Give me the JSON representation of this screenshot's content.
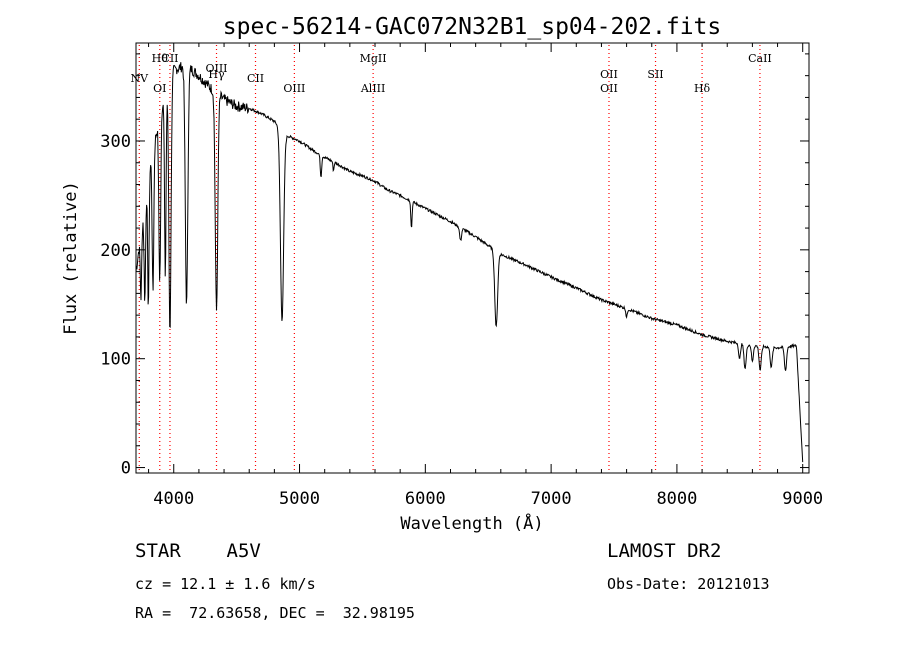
{
  "chart_data": {
    "type": "line",
    "title": "spec-56214-GAC072N32B1_sp04-202.fits",
    "xlabel": "Wavelength (Å)",
    "ylabel": "Flux (relative)",
    "xlim": [
      3700,
      9050
    ],
    "ylim": [
      -5,
      390
    ],
    "xticks": [
      4000,
      5000,
      6000,
      7000,
      8000,
      9000
    ],
    "yticks": [
      0,
      100,
      200,
      300
    ],
    "line_color": "#000000",
    "marker_color": "#ff0000",
    "continuum": [
      [
        3700,
        180
      ],
      [
        3800,
        270
      ],
      [
        3900,
        330
      ],
      [
        4000,
        365
      ],
      [
        4100,
        370
      ],
      [
        4200,
        360
      ],
      [
        4300,
        348
      ],
      [
        4400,
        338
      ],
      [
        4500,
        332
      ],
      [
        4600,
        330
      ],
      [
        4700,
        325
      ],
      [
        4800,
        318
      ],
      [
        4900,
        305
      ],
      [
        5000,
        300
      ],
      [
        5100,
        292
      ],
      [
        5200,
        285
      ],
      [
        5300,
        279
      ],
      [
        5400,
        272
      ],
      [
        5500,
        268
      ],
      [
        5600,
        263
      ],
      [
        5700,
        255
      ],
      [
        5800,
        250
      ],
      [
        5900,
        244
      ],
      [
        6000,
        238
      ],
      [
        6200,
        226
      ],
      [
        6400,
        212
      ],
      [
        6600,
        196
      ],
      [
        6800,
        186
      ],
      [
        7000,
        175
      ],
      [
        7200,
        165
      ],
      [
        7400,
        154
      ],
      [
        7600,
        146
      ],
      [
        7800,
        137
      ],
      [
        8000,
        131
      ],
      [
        8200,
        122
      ],
      [
        8400,
        116
      ],
      [
        8600,
        112
      ],
      [
        8800,
        110
      ],
      [
        8950,
        112
      ],
      [
        9000,
        5
      ]
    ],
    "absorption": [
      {
        "x": 3740,
        "depth": 60,
        "width": 8
      },
      {
        "x": 3770,
        "depth": 90,
        "width": 8
      },
      {
        "x": 3798,
        "depth": 120,
        "width": 8
      },
      {
        "x": 3835,
        "depth": 130,
        "width": 9
      },
      {
        "x": 3889,
        "depth": 150,
        "width": 10
      },
      {
        "x": 3933,
        "depth": 170,
        "width": 8
      },
      {
        "x": 3970,
        "depth": 230,
        "width": 12
      },
      {
        "x": 4102,
        "depth": 220,
        "width": 14
      },
      {
        "x": 4340,
        "depth": 200,
        "width": 14
      },
      {
        "x": 4861,
        "depth": 175,
        "width": 18
      },
      {
        "x": 5170,
        "depth": 20,
        "width": 8
      },
      {
        "x": 5270,
        "depth": 8,
        "width": 6
      },
      {
        "x": 5890,
        "depth": 25,
        "width": 7
      },
      {
        "x": 6280,
        "depth": 12,
        "width": 10
      },
      {
        "x": 6563,
        "depth": 70,
        "width": 16
      },
      {
        "x": 7600,
        "depth": 8,
        "width": 8
      },
      {
        "x": 8498,
        "depth": 15,
        "width": 10
      },
      {
        "x": 8542,
        "depth": 22,
        "width": 12
      },
      {
        "x": 8600,
        "depth": 15,
        "width": 10
      },
      {
        "x": 8662,
        "depth": 22,
        "width": 12
      },
      {
        "x": 8750,
        "depth": 18,
        "width": 12
      },
      {
        "x": 8863,
        "depth": 22,
        "width": 12
      }
    ],
    "lines": [
      {
        "x": 3726,
        "labels": [
          {
            "text": "NV",
            "row": 3
          }
        ]
      },
      {
        "x": 3889,
        "labels": [
          {
            "text": "Hθ",
            "row": 1
          },
          {
            "text": "OI",
            "row": 4
          }
        ]
      },
      {
        "x": 3970,
        "labels": [
          {
            "text": "CII",
            "row": 1
          }
        ]
      },
      {
        "x": 4340,
        "labels": [
          {
            "text": "OIII",
            "row": 2
          },
          {
            "text": "Hγ",
            "row": 2.6
          }
        ]
      },
      {
        "x": 4650,
        "labels": [
          {
            "text": "CII",
            "row": 3
          }
        ]
      },
      {
        "x": 4959,
        "labels": [
          {
            "text": "OIII",
            "row": 4
          }
        ]
      },
      {
        "x": 5585,
        "labels": [
          {
            "text": "MgII",
            "row": 1
          },
          {
            "text": "AlIII",
            "row": 4
          }
        ]
      },
      {
        "x": 7460,
        "labels": [
          {
            "text": "OII",
            "row": 2.6
          },
          {
            "text": "OII",
            "row": 4
          }
        ]
      },
      {
        "x": 7830,
        "labels": [
          {
            "text": "SII",
            "row": 2.6
          }
        ]
      },
      {
        "x": 8200,
        "labels": [
          {
            "text": "Hδ",
            "row": 4
          }
        ]
      },
      {
        "x": 8660,
        "labels": [
          {
            "text": "CaII",
            "row": 1
          }
        ]
      }
    ]
  },
  "info": {
    "star": "STAR    A5V",
    "cz": "cz = 12.1 ± 1.6 km/s",
    "radec": "RA =  72.63658, DEC =  32.98195",
    "survey": "LAMOST DR2",
    "obs_date": "Obs-Date: 20121013"
  }
}
